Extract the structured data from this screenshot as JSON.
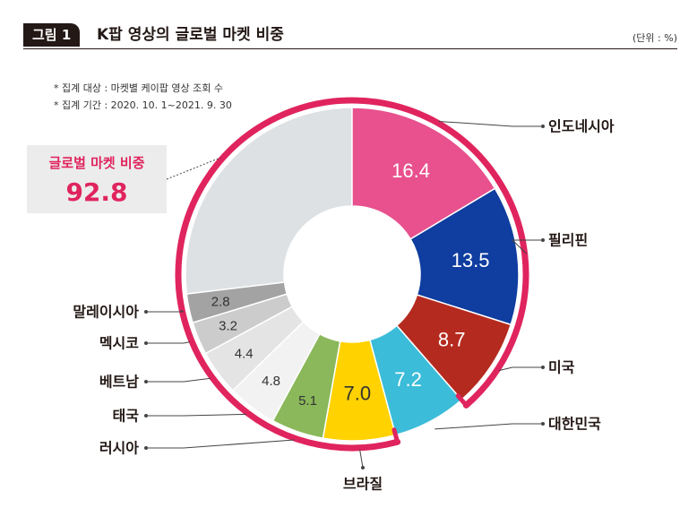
{
  "figure": {
    "badge": "그림 1",
    "title": "K팝 영상의 글로벌 마켓 비중",
    "unit": "(단위 : %)"
  },
  "notes": [
    "* 집계 대상 : 마켓별 케이팝 영상 조회 수",
    "* 집계 기간 : 2020. 10. 1~2021. 9. 30"
  ],
  "global_share": {
    "label": "글로벌 마켓 비중",
    "value": "92.8"
  },
  "colors": {
    "outline": "#e0245e",
    "remainder": "#dde1e4",
    "badge_bg": "#231815"
  },
  "chart_data": {
    "type": "pie",
    "title": "K팝 영상의 글로벌 마켓 비중",
    "unit": "%",
    "slices": [
      {
        "label": "인도네시아",
        "value": 16.4,
        "color": "#e8508e",
        "highlight": true
      },
      {
        "label": "필리핀",
        "value": 13.5,
        "color": "#0f3da0",
        "highlight": true
      },
      {
        "label": "미국",
        "value": 8.7,
        "color": "#b52a1f",
        "highlight": true
      },
      {
        "label": "대한민국",
        "value": 7.2,
        "color": "#3bbcd9",
        "highlight": false
      },
      {
        "label": "브라질",
        "value": 7.0,
        "color": "#ffd200",
        "highlight": true
      },
      {
        "label": "러시아",
        "value": 5.1,
        "color": "#8ab85a",
        "highlight": true
      },
      {
        "label": "태국",
        "value": 4.8,
        "color": "#f2f2f2",
        "highlight": true
      },
      {
        "label": "베트남",
        "value": 4.4,
        "color": "#e4e4e4",
        "highlight": true
      },
      {
        "label": "멕시코",
        "value": 3.2,
        "color": "#cccccc",
        "highlight": true
      },
      {
        "label": "말레이시아",
        "value": 2.8,
        "color": "#a3a3a3",
        "highlight": true
      }
    ],
    "remainder_highlight": true
  }
}
